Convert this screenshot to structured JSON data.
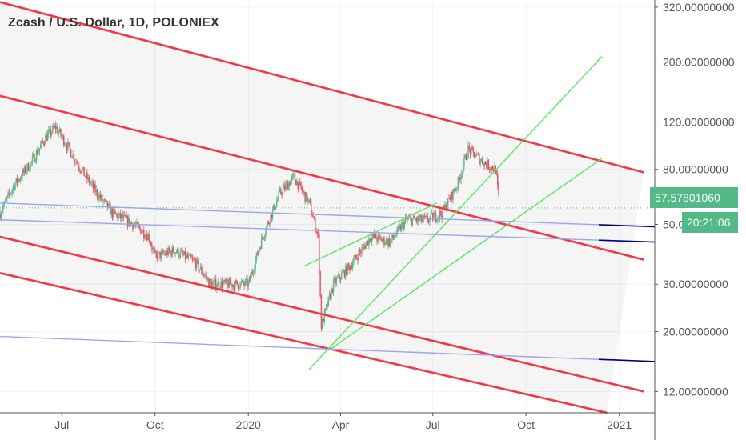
{
  "header": {
    "title": "Zcash / U.S. Dollar, 1D, POLONIEX"
  },
  "current": {
    "price_label": "57.57801060",
    "countdown": "20:21:06"
  },
  "colors": {
    "up": "#53b987",
    "down": "#eb4d5c",
    "red_line": "#f23645",
    "green_line": "#5ce65c",
    "blue_line": "#9aa8ee",
    "navy_line": "#00007f",
    "tag": "#53b987"
  },
  "chart_data": {
    "type": "candlestick",
    "title": "Zcash / U.S. Dollar, 1D, POLONIEX",
    "y_scale": "log",
    "ylim": [
      10,
      340
    ],
    "y_ticks": [
      {
        "value": 320,
        "label": "320.00000000"
      },
      {
        "value": 200,
        "label": "200.00000000"
      },
      {
        "value": 120,
        "label": "120.00000000"
      },
      {
        "value": 80,
        "label": "80.00000000"
      },
      {
        "value": 50,
        "label": "50.00000000"
      },
      {
        "value": 30,
        "label": "30.00000000"
      },
      {
        "value": 20,
        "label": "20.00000000"
      },
      {
        "value": 12,
        "label": "12.00000000"
      }
    ],
    "xlim": [
      "2019-05-01",
      "2021-02-05"
    ],
    "x_ticks": [
      {
        "value": "2019-07-01",
        "label": "Jul"
      },
      {
        "value": "2019-10-01",
        "label": "Oct"
      },
      {
        "value": "2020-01-01",
        "label": "2020"
      },
      {
        "value": "2020-04-01",
        "label": "Apr"
      },
      {
        "value": "2020-07-01",
        "label": "Jul"
      },
      {
        "value": "2020-10-01",
        "label": "Oct"
      },
      {
        "value": "2021-01-01",
        "label": "2021"
      }
    ],
    "grid": true,
    "last_price": 57.5780106,
    "price_path": [
      [
        "2019-05-01",
        55
      ],
      [
        "2019-05-15",
        70
      ],
      [
        "2019-06-01",
        85
      ],
      [
        "2019-06-15",
        105
      ],
      [
        "2019-06-25",
        115
      ],
      [
        "2019-07-05",
        100
      ],
      [
        "2019-07-20",
        80
      ],
      [
        "2019-08-05",
        65
      ],
      [
        "2019-08-20",
        55
      ],
      [
        "2019-09-10",
        50
      ],
      [
        "2019-09-25",
        45
      ],
      [
        "2019-10-01",
        38
      ],
      [
        "2019-10-20",
        40
      ],
      [
        "2019-11-10",
        36
      ],
      [
        "2019-11-25",
        30
      ],
      [
        "2019-12-15",
        30
      ],
      [
        "2020-01-01",
        30
      ],
      [
        "2020-01-15",
        45
      ],
      [
        "2020-02-01",
        65
      ],
      [
        "2020-02-15",
        75
      ],
      [
        "2020-03-01",
        60
      ],
      [
        "2020-03-10",
        45
      ],
      [
        "2020-03-13",
        21
      ],
      [
        "2020-03-25",
        30
      ],
      [
        "2020-04-10",
        35
      ],
      [
        "2020-05-01",
        45
      ],
      [
        "2020-05-20",
        43
      ],
      [
        "2020-06-05",
        52
      ],
      [
        "2020-06-25",
        52
      ],
      [
        "2020-07-10",
        55
      ],
      [
        "2020-07-25",
        70
      ],
      [
        "2020-08-05",
        95
      ],
      [
        "2020-08-20",
        85
      ],
      [
        "2020-09-01",
        80
      ],
      [
        "2020-09-05",
        57.6
      ]
    ],
    "trendlines": [
      {
        "color": "red",
        "from": [
          "2019-05-01",
          334
        ],
        "to": [
          "2021-01-25",
          78
        ]
      },
      {
        "color": "red",
        "from": [
          "2019-05-01",
          150
        ],
        "to": [
          "2021-01-25",
          37
        ]
      },
      {
        "color": "red",
        "from": [
          "2019-05-01",
          45
        ],
        "to": [
          "2021-01-25",
          12
        ]
      },
      {
        "color": "red",
        "from": [
          "2019-05-01",
          33
        ],
        "to": [
          "2020-12-20",
          10
        ]
      },
      {
        "color": "green",
        "from": [
          "2020-03-01",
          14.5
        ],
        "to": [
          "2020-12-15",
          210
        ]
      },
      {
        "color": "green",
        "from": [
          "2020-03-20",
          17
        ],
        "to": [
          "2020-12-15",
          88
        ]
      },
      {
        "color": "green",
        "from": [
          "2020-02-25",
          35
        ],
        "to": [
          "2020-07-05",
          60
        ]
      },
      {
        "color": "blue",
        "from": [
          "2019-05-01",
          60
        ],
        "to": [
          "2021-02-05",
          49
        ]
      },
      {
        "color": "blue",
        "from": [
          "2019-05-01",
          52
        ],
        "to": [
          "2021-02-05",
          43
        ]
      },
      {
        "color": "blue",
        "from": [
          "2019-05-01",
          19.2
        ],
        "to": [
          "2021-02-05",
          15.5
        ]
      }
    ]
  }
}
